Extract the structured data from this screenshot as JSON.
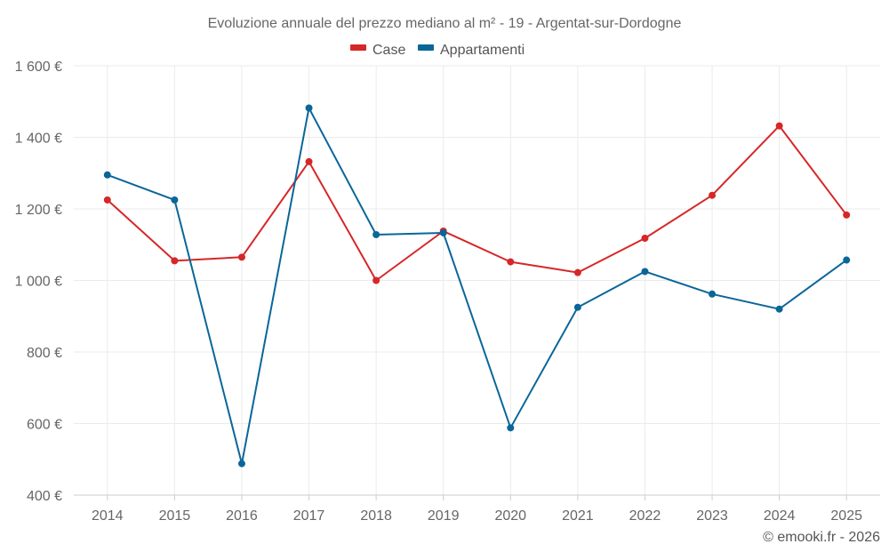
{
  "chart_data": {
    "type": "line",
    "title": "Evoluzione annuale del prezzo mediano al m² - 19 - Argentat-sur-Dordogne",
    "categories": [
      "2014",
      "2015",
      "2016",
      "2017",
      "2018",
      "2019",
      "2020",
      "2021",
      "2022",
      "2023",
      "2024",
      "2025"
    ],
    "ylim": [
      400,
      1600
    ],
    "yticks": [
      400,
      600,
      800,
      1000,
      1200,
      1400,
      1600
    ],
    "ytick_labels": [
      "400 €",
      "600 €",
      "800 €",
      "1 000 €",
      "1 200 €",
      "1 400 €",
      "1 600 €"
    ],
    "xlabel": "",
    "ylabel": "",
    "grid": true,
    "legend_position": "top-center",
    "series": [
      {
        "name": "Case",
        "color": "#d62728",
        "values": [
          1225,
          1055,
          1065,
          1332,
          1000,
          1138,
          1052,
          1022,
          1118,
          1238,
          1432,
          1183
        ]
      },
      {
        "name": "Appartamenti",
        "color": "#0a6699",
        "values": [
          1295,
          1225,
          488,
          1482,
          1128,
          1133,
          588,
          925,
          1025,
          962,
          920,
          1057
        ]
      }
    ]
  },
  "credit": "© emooki.fr - 2026"
}
